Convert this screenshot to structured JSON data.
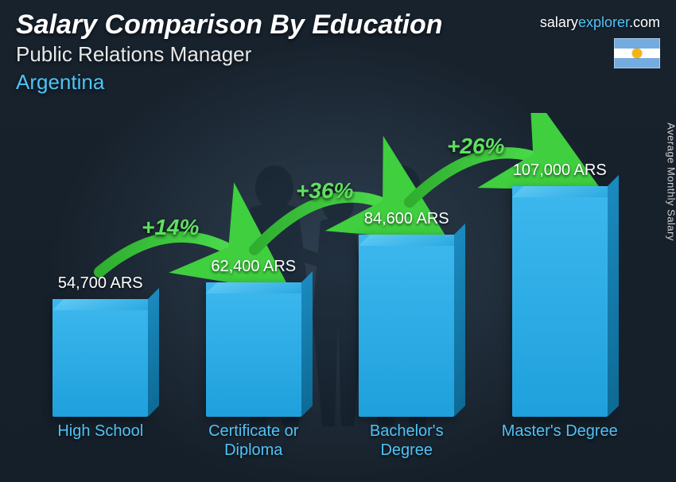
{
  "header": {
    "title": "Salary Comparison By Education",
    "subtitle": "Public Relations Manager",
    "country": "Argentina",
    "brand_prefix": "salary",
    "brand_accent": "explorer",
    "brand_suffix": ".com"
  },
  "yaxis_label": "Average Monthly Salary",
  "flag": {
    "country": "Argentina",
    "stripe_color": "#74acdf",
    "mid_color": "#ffffff",
    "sun_color": "#f6b40e"
  },
  "chart": {
    "type": "bar",
    "currency": "ARS",
    "max_value": 107000,
    "bar_front_color": "#1fa0dc",
    "bar_top_color": "#5ec9f5",
    "bar_side_color": "#0e6a95",
    "label_color": "#4fc3f7",
    "value_color": "#ffffff",
    "pct_color": "#5fe05f",
    "arrow_color": "#3fcf3f",
    "background_color": "#1a2530",
    "value_fontsize": 20,
    "label_fontsize": 20,
    "pct_fontsize": 28,
    "title_fontsize": 34,
    "bars": [
      {
        "label": "High School",
        "value": 54700,
        "value_text": "54,700 ARS"
      },
      {
        "label": "Certificate or Diploma",
        "value": 62400,
        "value_text": "62,400 ARS"
      },
      {
        "label": "Bachelor's Degree",
        "value": 84600,
        "value_text": "84,600 ARS"
      },
      {
        "label": "Master's Degree",
        "value": 107000,
        "value_text": "107,000 ARS"
      }
    ],
    "increases": [
      {
        "from": 0,
        "to": 1,
        "pct": "+14%"
      },
      {
        "from": 1,
        "to": 2,
        "pct": "+36%"
      },
      {
        "from": 2,
        "to": 3,
        "pct": "+26%"
      }
    ]
  }
}
